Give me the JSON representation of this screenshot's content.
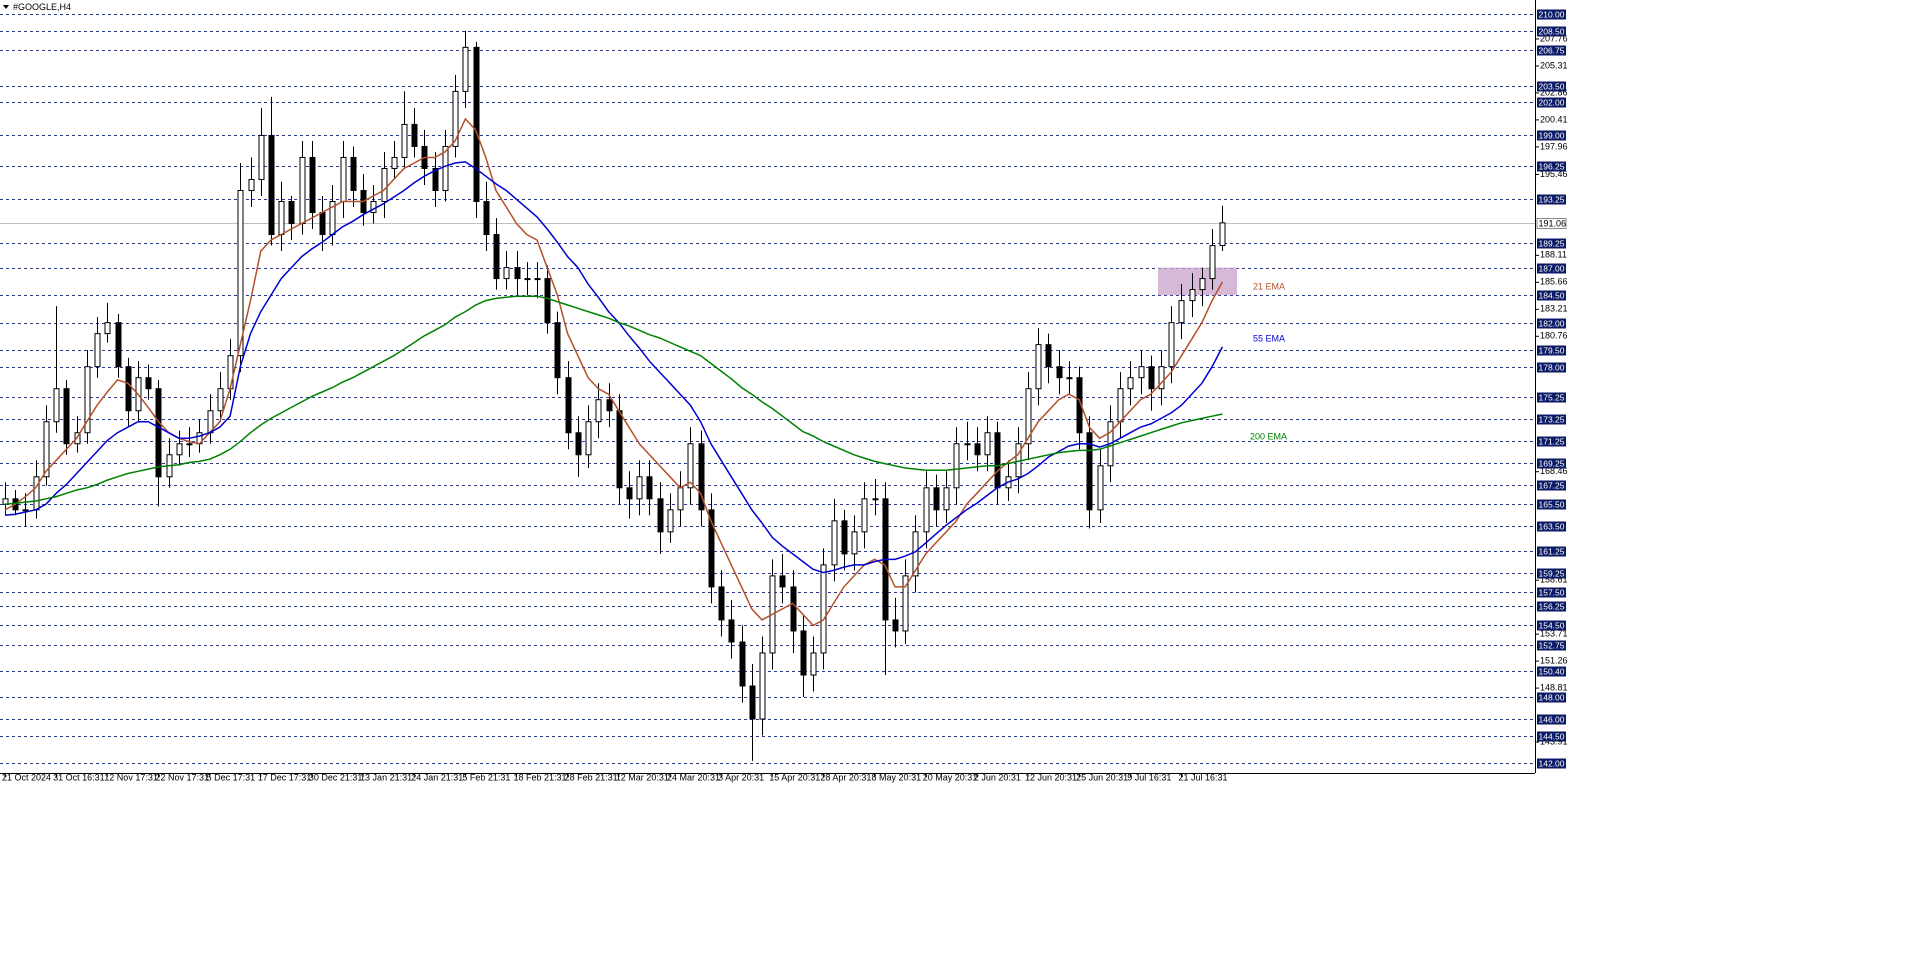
{
  "chart_data": {
    "type": "candlestick",
    "title": "#GOOGLE,H4",
    "ylim": [
      141.1,
      211.3
    ],
    "yticks": [
      207.76,
      205.31,
      202.86,
      200.41,
      197.96,
      195.46,
      188.11,
      185.66,
      183.21,
      180.76,
      168.46,
      158.61,
      153.71,
      151.26,
      148.81,
      143.91
    ],
    "levels": [
      {
        "value": 210,
        "label": "210.00"
      },
      {
        "value": 208.5,
        "label": "208.50"
      },
      {
        "value": 206.75,
        "label": "206.75"
      },
      {
        "value": 203.5,
        "label": "203.50"
      },
      {
        "value": 202,
        "label": "202.00"
      },
      {
        "value": 199,
        "label": "199.00"
      },
      {
        "value": 196.25,
        "label": "196.25"
      },
      {
        "value": 193.25,
        "label": "193.25"
      },
      {
        "value": 189.25,
        "label": "189.25"
      },
      {
        "value": 187,
        "label": "187.00"
      },
      {
        "value": 184.5,
        "label": "184.50"
      },
      {
        "value": 182,
        "label": "182.00"
      },
      {
        "value": 179.5,
        "label": "179.50"
      },
      {
        "value": 178,
        "label": "178.00"
      },
      {
        "value": 175.25,
        "label": "175.25"
      },
      {
        "value": 173.25,
        "label": "173.25"
      },
      {
        "value": 171.25,
        "label": "171.25"
      },
      {
        "value": 169.25,
        "label": "169.25"
      },
      {
        "value": 167.25,
        "label": "167.25"
      },
      {
        "value": 165.5,
        "label": "165.50"
      },
      {
        "value": 163.5,
        "label": "163.50"
      },
      {
        "value": 161.25,
        "label": "161.25"
      },
      {
        "value": 159.25,
        "label": "159.25"
      },
      {
        "value": 157.5,
        "label": "157.50"
      },
      {
        "value": 156.25,
        "label": "156.25"
      },
      {
        "value": 154.5,
        "label": "154.50"
      },
      {
        "value": 152.75,
        "label": "152.75"
      },
      {
        "value": 150.4,
        "label": "150.40"
      },
      {
        "value": 148,
        "label": "148.00"
      },
      {
        "value": 146,
        "label": "146.00"
      },
      {
        "value": 144.5,
        "label": "144.50"
      },
      {
        "value": 142,
        "label": "142.00"
      }
    ],
    "current_price": 191.06,
    "zone": [
      184.5,
      187
    ],
    "categories": [
      "21 Oct 2024",
      null,
      null,
      null,
      null,
      "31 Oct 16:31",
      null,
      null,
      null,
      null,
      "12 Nov 17:31",
      null,
      null,
      null,
      null,
      "22 Nov 17:31",
      null,
      null,
      null,
      null,
      "5 Dec 17:31",
      null,
      null,
      null,
      null,
      "17 Dec 17:31",
      null,
      null,
      null,
      null,
      "30 Dec 21:31",
      null,
      null,
      null,
      null,
      "13 Jan 21:31",
      null,
      null,
      null,
      null,
      "24 Jan 21:31",
      null,
      null,
      null,
      null,
      "5 Feb 21:31",
      null,
      null,
      null,
      null,
      "18 Feb 21:31",
      null,
      null,
      null,
      null,
      "28 Feb 21:31",
      null,
      null,
      null,
      null,
      "12 Mar 20:31",
      null,
      null,
      null,
      null,
      "24 Mar 20:31",
      null,
      null,
      null,
      null,
      "3 Apr 20:31",
      null,
      null,
      null,
      null,
      "15 Apr 20:31",
      null,
      null,
      null,
      null,
      "28 Apr 20:31",
      null,
      null,
      null,
      null,
      "8 May 20:31",
      null,
      null,
      null,
      null,
      "20 May 20:31",
      null,
      null,
      null,
      null,
      "2 Jun 20:31",
      null,
      null,
      null,
      null,
      "12 Jun 20:31",
      null,
      null,
      null,
      null,
      "25 Jun 20:31",
      null,
      null,
      null,
      null,
      "9 Jul 16:31",
      null,
      null,
      null,
      null,
      "21 Jul 16:31",
      null,
      null,
      null,
      null
    ],
    "ohlc": {
      "open": [
        165.5,
        166,
        165,
        165,
        168,
        173,
        176,
        171,
        172,
        178,
        181,
        182,
        178,
        174,
        177,
        176,
        168,
        170,
        171,
        171,
        172,
        174,
        176,
        179,
        194,
        195,
        199,
        190,
        193,
        191,
        197,
        192,
        190,
        193,
        197,
        194,
        192,
        193,
        196,
        197,
        200,
        198,
        196,
        194,
        198,
        203,
        207,
        193,
        190,
        186,
        187,
        186,
        186,
        186,
        182,
        177,
        172,
        170,
        173,
        175,
        174,
        167,
        166,
        168,
        166,
        163,
        165,
        167,
        171,
        165,
        158,
        155,
        153,
        149,
        146,
        152,
        159,
        158,
        154,
        150,
        152,
        160,
        164,
        161,
        163,
        166,
        166,
        155,
        154,
        159,
        163,
        167,
        165,
        167,
        171,
        171,
        170,
        172,
        167,
        168,
        171,
        176,
        180,
        178,
        177,
        177,
        172,
        165,
        169,
        173,
        176,
        177,
        178,
        176,
        178,
        182,
        184,
        185,
        186,
        189
      ],
      "high": [
        167.5,
        166.8,
        166.5,
        169.5,
        174.5,
        183.5,
        176.8,
        173.5,
        179.5,
        182.5,
        183.8,
        182.8,
        178.8,
        178.5,
        178.2,
        176.8,
        171.5,
        172.2,
        172.5,
        173.2,
        175.5,
        177.5,
        180.5,
        196.5,
        197,
        201.5,
        202.5,
        194.8,
        193.5,
        198.5,
        198.5,
        193.5,
        194.5,
        198.5,
        198,
        195.5,
        194.5,
        197.5,
        198.5,
        203,
        201.5,
        199.5,
        197.5,
        199.5,
        204.5,
        208.5,
        207.5,
        194.8,
        191.5,
        188.5,
        188.5,
        187.5,
        187.5,
        187.2,
        183,
        178.5,
        173.5,
        174.5,
        176.5,
        176.5,
        175.5,
        168.5,
        169.5,
        169.5,
        167.5,
        166.5,
        168.5,
        172.5,
        172.2,
        166.5,
        159.5,
        156.8,
        154.5,
        151,
        153.5,
        160.5,
        161,
        159.5,
        155.5,
        153.5,
        161.5,
        166,
        165,
        164.5,
        167.5,
        167.8,
        167.5,
        157,
        160.5,
        164.5,
        168.5,
        168.2,
        168.5,
        172.5,
        173,
        172.5,
        173.5,
        173,
        169.5,
        172.5,
        177.5,
        181.5,
        181,
        179.5,
        178.5,
        178,
        173.5,
        170.5,
        174.5,
        177.5,
        178.5,
        179.5,
        179,
        179.5,
        183.5,
        185.5,
        186.5,
        187,
        190.5,
        192.6
      ],
      "low": [
        164.5,
        164.5,
        163.5,
        164.2,
        167.2,
        172,
        170,
        170.2,
        171,
        177,
        180.2,
        177,
        172.5,
        173,
        175,
        165.3,
        167,
        169,
        169.8,
        170.2,
        171,
        173,
        175,
        177.5,
        192.5,
        193.5,
        189,
        188.5,
        189.5,
        190,
        190.5,
        188.5,
        189,
        191.5,
        192.5,
        190.8,
        191,
        191.5,
        195,
        196,
        197,
        194.5,
        192.5,
        193,
        197,
        201.5,
        191.5,
        188.5,
        185,
        185,
        184.5,
        184.5,
        184.2,
        181,
        175.5,
        170.5,
        168,
        168.8,
        171.5,
        172.5,
        165.5,
        164.2,
        164.5,
        164.5,
        161,
        162,
        163.5,
        165.5,
        163.5,
        156.5,
        153.5,
        151.5,
        147.5,
        142.2,
        144.5,
        150.5,
        156.5,
        152,
        148,
        148.5,
        150.5,
        158.5,
        159.5,
        159.5,
        161.5,
        164.5,
        150,
        152.5,
        152.8,
        157.5,
        161.5,
        163.5,
        163.8,
        165.5,
        169.5,
        168.5,
        168.5,
        165.5,
        165.8,
        166.5,
        169.5,
        174.5,
        176.5,
        175.5,
        175.5,
        170.5,
        163.3,
        163.8,
        167.5,
        171.5,
        174.5,
        175.5,
        174,
        174.5,
        176.5,
        180.5,
        182.5,
        183.5,
        185,
        188.5
      ],
      "close": [
        166,
        165,
        165,
        168,
        173,
        176,
        171,
        172,
        178,
        181,
        182,
        178,
        174,
        177,
        176,
        168,
        170,
        171,
        171,
        172,
        174,
        176,
        179,
        194,
        195,
        199,
        190,
        193,
        191,
        197,
        192,
        190,
        193,
        197,
        194,
        192,
        193,
        196,
        197,
        200,
        198,
        196,
        194,
        198,
        203,
        207,
        193,
        190,
        186,
        187,
        186,
        186,
        186,
        182,
        177,
        172,
        170,
        173,
        175,
        174,
        167,
        166,
        168,
        166,
        163,
        165,
        167,
        171,
        165,
        158,
        155,
        153,
        149,
        146,
        152,
        159,
        158,
        154,
        150,
        152,
        160,
        164,
        161,
        163,
        166,
        166,
        155,
        154,
        159,
        163,
        167,
        165,
        167,
        171,
        171,
        170,
        172,
        167,
        168,
        171,
        176,
        180,
        178,
        177,
        177,
        172,
        165,
        169,
        173,
        176,
        177,
        178,
        176,
        178,
        182,
        184,
        185,
        186,
        189,
        191.06
      ]
    },
    "series": [
      {
        "name": "21 EMA",
        "color": "#b4502a",
        "values": [
          165,
          165.5,
          166.2,
          167,
          168.5,
          169.5,
          170.5,
          171.5,
          173,
          174.5,
          175.7,
          176.8,
          176.5,
          175.5,
          174.3,
          173,
          172,
          171.5,
          171.2,
          171,
          172,
          173,
          176,
          180,
          184,
          188.5,
          189.5,
          190,
          190.5,
          191,
          191.5,
          192,
          192.5,
          193,
          193,
          193,
          193.5,
          194,
          195,
          196,
          196.5,
          197,
          197,
          197.5,
          198.5,
          200.5,
          199.5,
          197,
          194,
          192.5,
          191,
          190,
          189.5,
          187,
          184.5,
          181,
          179,
          177,
          176,
          175.5,
          174,
          172.5,
          171,
          170,
          169,
          168,
          167,
          167.5,
          166.5,
          164,
          162,
          160,
          158,
          156,
          155,
          155.5,
          156,
          156.5,
          155.5,
          154.5,
          155,
          156.5,
          158,
          159,
          160,
          160.5,
          160,
          158,
          158,
          159.5,
          161,
          162,
          163,
          164,
          165.5,
          166.5,
          167.5,
          168.5,
          169.3,
          170,
          171.5,
          173,
          174,
          175,
          175.5,
          175,
          172.5,
          171.5,
          172,
          173,
          174,
          175,
          175.5,
          176.5,
          177.5,
          179,
          180.5,
          182,
          184,
          185.7
        ]
      },
      {
        "name": "55 EMA",
        "color": "#0000d0",
        "values": [
          164.5,
          164.6,
          164.8,
          165,
          165.5,
          166.5,
          167.3,
          168.3,
          169.3,
          170.3,
          171.3,
          172,
          172.5,
          173,
          173,
          172.5,
          172,
          171.5,
          171.5,
          171.7,
          172,
          172.5,
          173.5,
          178,
          181,
          183,
          184.5,
          186,
          187,
          188,
          188.7,
          189.3,
          190,
          190.7,
          191.2,
          191.8,
          192.3,
          192.8,
          193.4,
          194,
          194.7,
          195.3,
          195.8,
          196.2,
          196.5,
          196.6,
          196,
          195.3,
          194.6,
          194,
          193.2,
          192.4,
          191.6,
          190.5,
          189.3,
          188,
          187,
          185.5,
          184.3,
          183,
          182,
          180.8,
          179.7,
          178.5,
          177.5,
          176.5,
          175.5,
          174.5,
          173,
          171,
          169.5,
          168,
          166.5,
          165,
          163.8,
          162.5,
          161.7,
          161,
          160.3,
          159.6,
          159.3,
          159.5,
          159.8,
          160,
          160,
          160.3,
          160.5,
          160.5,
          160.8,
          161.2,
          162,
          162.8,
          163.6,
          164.3,
          165,
          165.6,
          166.3,
          167,
          167.5,
          167.8,
          168.3,
          169,
          169.8,
          170.3,
          170.8,
          171,
          171,
          170.7,
          171,
          171.5,
          172,
          172.5,
          172.8,
          173.3,
          173.8,
          174.5,
          175.5,
          176.5,
          178,
          179.8
        ]
      },
      {
        "name": "200 EMA",
        "color": "#008000",
        "values": [
          165.5,
          165.6,
          165.7,
          165.8,
          166,
          166.2,
          166.5,
          166.8,
          167,
          167.3,
          167.7,
          168,
          168.3,
          168.5,
          168.7,
          168.9,
          169,
          169.1,
          169.3,
          169.4,
          169.6,
          170,
          170.5,
          171.2,
          172,
          172.7,
          173.3,
          173.8,
          174.3,
          174.8,
          175.3,
          175.7,
          176.1,
          176.6,
          177,
          177.5,
          178,
          178.5,
          179,
          179.6,
          180.2,
          180.8,
          181.3,
          181.8,
          182.5,
          183,
          183.6,
          184,
          184.2,
          184.3,
          184.4,
          184.4,
          184.4,
          184.2,
          183.9,
          183.6,
          183.3,
          183,
          182.7,
          182.4,
          182,
          181.7,
          181.3,
          180.9,
          180.6,
          180.2,
          179.8,
          179.4,
          179,
          178.3,
          177.6,
          176.9,
          176.1,
          175.5,
          174.8,
          174.2,
          173.5,
          172.8,
          172.1,
          171.7,
          171.2,
          170.8,
          170.4,
          170,
          169.7,
          169.4,
          169.2,
          169,
          168.8,
          168.7,
          168.6,
          168.6,
          168.6,
          168.7,
          168.8,
          168.9,
          169,
          169,
          169.2,
          169.4,
          169.6,
          169.8,
          170,
          170.2,
          170.3,
          170.4,
          170.4,
          170.5,
          170.8,
          171.1,
          171.4,
          171.7,
          172,
          172.3,
          172.6,
          172.9,
          173.1,
          173.3,
          173.5,
          173.7
        ]
      }
    ]
  }
}
